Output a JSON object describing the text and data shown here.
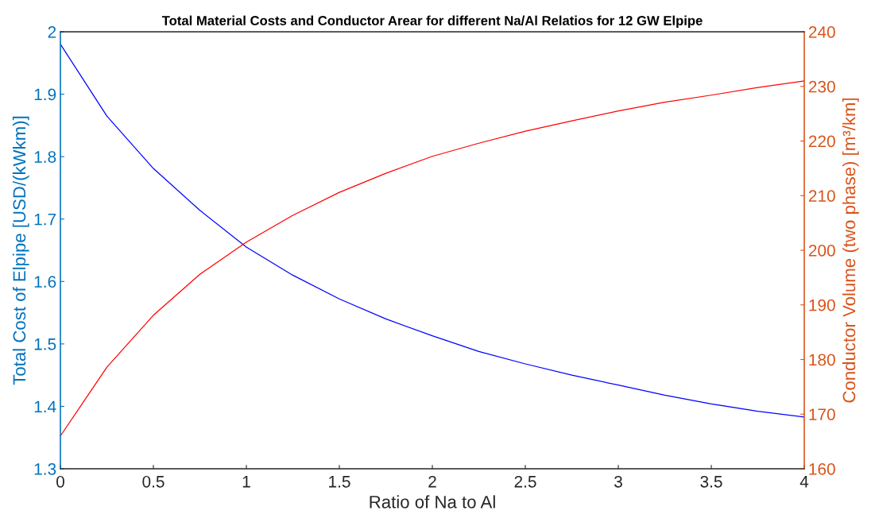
{
  "chart_data": {
    "type": "line",
    "title": "Total Material Costs and Conductor Arear for different Na/Al Relatios for 12 GW Elpipe",
    "xlabel": "Ratio of Na to Al",
    "ylabel": "Total Cost of Elpipe [USD/(kWkm)]",
    "y2label": "Conductor Volume (two phase) [m³/km]",
    "x": [
      0,
      0.25,
      0.5,
      0.75,
      1,
      1.25,
      1.5,
      1.75,
      2,
      2.25,
      2.5,
      2.75,
      3,
      3.25,
      3.5,
      3.75,
      4
    ],
    "series": [
      {
        "color": "#0000ff",
        "values": [
          1.98,
          1.865,
          1.781,
          1.714,
          1.655,
          1.61,
          1.572,
          1.54,
          1.513,
          1.488,
          1.468,
          1.45,
          1.434,
          1.418,
          1.404,
          1.392,
          1.383
        ]
      },
      {
        "color": "#ff0000",
        "axis": "y2",
        "values": [
          166.0,
          178.6,
          188.1,
          195.6,
          201.5,
          206.4,
          210.6,
          214.1,
          217.2,
          219.6,
          221.8,
          223.7,
          225.5,
          227.1,
          228.4,
          229.8,
          231.0
        ]
      }
    ],
    "xlim": [
      0,
      4
    ],
    "xticks": [
      0,
      0.5,
      1,
      1.5,
      2,
      2.5,
      3,
      3.5,
      4
    ],
    "ylim": [
      1.3,
      2
    ],
    "yticks": [
      1.3,
      1.4,
      1.5,
      1.6,
      1.7,
      1.8,
      1.9,
      2
    ],
    "y2lim": [
      160,
      240
    ],
    "y2ticks": [
      160,
      170,
      180,
      190,
      200,
      210,
      220,
      230,
      240
    ],
    "grid": false
  }
}
